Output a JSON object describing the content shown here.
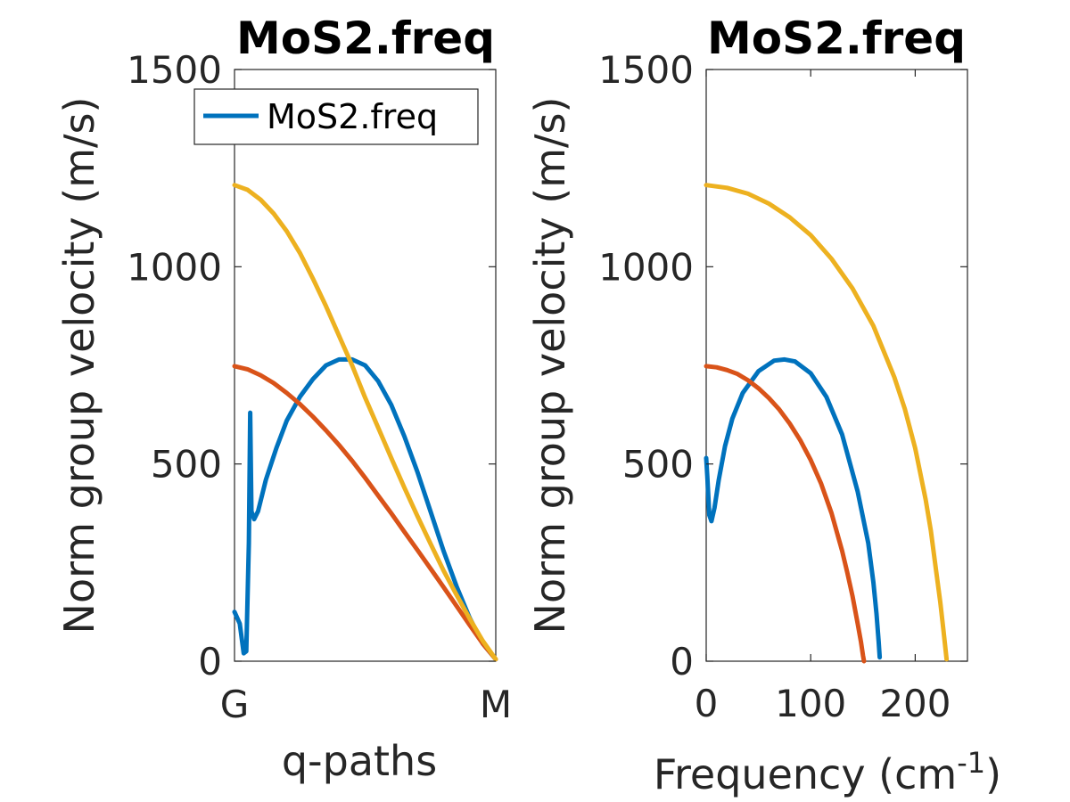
{
  "colors": {
    "series1": "#0072BD",
    "series2": "#D95319",
    "series3": "#EDB120",
    "axis": "#262626",
    "background": "#FFFFFF"
  },
  "chart_data": [
    {
      "type": "line",
      "title": "MoS2.freq",
      "xlabel": "q-paths",
      "ylabel": "Norm group velocity (m/s)",
      "x_ticklabels": [
        "G",
        "M"
      ],
      "x_range": [
        0,
        1
      ],
      "ylim": [
        0,
        1500
      ],
      "yticks": [
        0,
        500,
        1000,
        1500
      ],
      "grid": false,
      "legend": {
        "entries": [
          "MoS2.freq"
        ],
        "position": "top-right"
      },
      "series": [
        {
          "color": "#0072BD",
          "x": [
            0,
            0.02,
            0.035,
            0.045,
            0.055,
            0.06,
            0.065,
            0.075,
            0.09,
            0.12,
            0.16,
            0.2,
            0.25,
            0.3,
            0.35,
            0.4,
            0.45,
            0.5,
            0.55,
            0.6,
            0.65,
            0.7,
            0.75,
            0.8,
            0.85,
            0.9,
            0.95,
            1.0
          ],
          "y": [
            125,
            95,
            20,
            25,
            300,
            630,
            380,
            360,
            380,
            460,
            540,
            610,
            670,
            715,
            750,
            765,
            765,
            750,
            710,
            650,
            570,
            480,
            380,
            280,
            190,
            110,
            45,
            5
          ]
        },
        {
          "color": "#D95319",
          "x": [
            0,
            0.05,
            0.1,
            0.15,
            0.2,
            0.25,
            0.3,
            0.35,
            0.4,
            0.45,
            0.5,
            0.55,
            0.6,
            0.65,
            0.7,
            0.75,
            0.8,
            0.85,
            0.9,
            0.95,
            1.0
          ],
          "y": [
            748,
            740,
            725,
            705,
            680,
            652,
            620,
            585,
            548,
            508,
            465,
            420,
            375,
            328,
            282,
            235,
            188,
            140,
            92,
            45,
            5
          ]
        },
        {
          "color": "#EDB120",
          "x": [
            0,
            0.05,
            0.1,
            0.15,
            0.2,
            0.25,
            0.3,
            0.35,
            0.4,
            0.45,
            0.5,
            0.55,
            0.6,
            0.65,
            0.7,
            0.75,
            0.8,
            0.85,
            0.9,
            0.95,
            1.0
          ],
          "y": [
            1207,
            1195,
            1170,
            1135,
            1090,
            1035,
            970,
            900,
            825,
            750,
            668,
            592,
            515,
            440,
            368,
            298,
            230,
            168,
            108,
            52,
            5
          ]
        }
      ]
    },
    {
      "type": "line",
      "title": "MoS2.freq",
      "xlabel": "Frequency (cm",
      "xlabel_sup": "-1",
      "xlabel_end": ")",
      "ylabel": "Norm group velocity (m/s)",
      "xlim": [
        0,
        250
      ],
      "xticks": [
        0,
        100,
        200
      ],
      "ylim": [
        0,
        1500
      ],
      "yticks": [
        0,
        500,
        1000,
        1500
      ],
      "grid": false,
      "series": [
        {
          "color": "#0072BD",
          "x": [
            0,
            1,
            3,
            5,
            8,
            12,
            18,
            25,
            35,
            50,
            65,
            75,
            85,
            100,
            115,
            130,
            145,
            155,
            160,
            163,
            165,
            166
          ],
          "y": [
            515,
            470,
            370,
            355,
            390,
            460,
            545,
            615,
            680,
            735,
            762,
            765,
            760,
            730,
            670,
            575,
            430,
            300,
            200,
            120,
            50,
            10
          ]
        },
        {
          "color": "#D95319",
          "x": [
            0,
            10,
            20,
            30,
            40,
            50,
            60,
            70,
            80,
            90,
            100,
            110,
            120,
            130,
            135,
            140,
            145,
            148,
            150,
            151
          ],
          "y": [
            748,
            745,
            738,
            728,
            712,
            692,
            667,
            638,
            602,
            560,
            510,
            450,
            375,
            280,
            225,
            165,
            95,
            50,
            15,
            0
          ]
        },
        {
          "color": "#EDB120",
          "x": [
            0,
            20,
            40,
            60,
            80,
            100,
            120,
            140,
            160,
            180,
            190,
            200,
            210,
            215,
            220,
            224,
            227,
            229,
            230
          ],
          "y": [
            1207,
            1200,
            1185,
            1160,
            1125,
            1080,
            1020,
            945,
            850,
            720,
            640,
            540,
            410,
            330,
            230,
            150,
            80,
            30,
            5
          ]
        }
      ]
    }
  ]
}
